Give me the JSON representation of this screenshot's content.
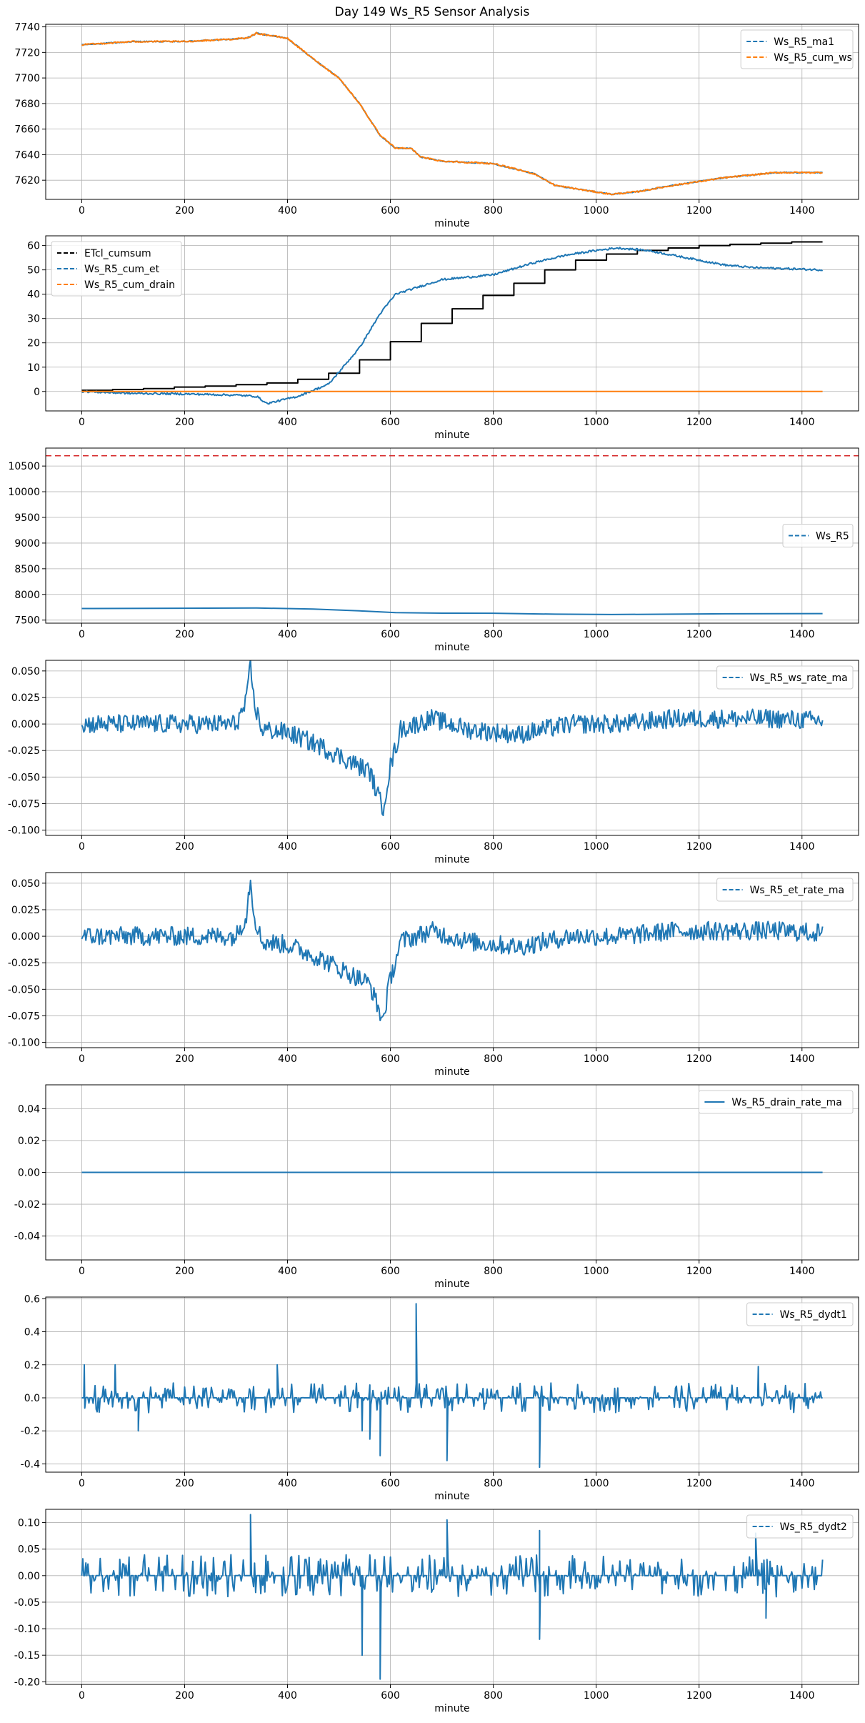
{
  "title": "Day 149 Ws_R5 Sensor Analysis",
  "colors": {
    "blue": "#1f77b4",
    "orange": "#ff7f0e",
    "black": "#000000",
    "red": "#d62728",
    "grid": "#b0b0b0"
  },
  "chart_data": [
    {
      "type": "line",
      "xlabel": "minute",
      "xlim": [
        -70,
        1510
      ],
      "ylim": [
        7605,
        7742
      ],
      "xticks": [
        0,
        200,
        400,
        600,
        800,
        1000,
        1200,
        1400
      ],
      "yticks": [
        7620,
        7640,
        7660,
        7680,
        7700,
        7720,
        7740
      ],
      "grid": true,
      "legend": "top-right",
      "series": [
        {
          "name": "Ws_R5_ma1",
          "color": "#1f77b4",
          "style": "dashed",
          "noise": 0.4,
          "points": [
            [
              0,
              7726
            ],
            [
              100,
              7728.5
            ],
            [
              200,
              7728.5
            ],
            [
              320,
              7731
            ],
            [
              340,
              7735
            ],
            [
              400,
              7731
            ],
            [
              450,
              7715
            ],
            [
              500,
              7700
            ],
            [
              540,
              7680
            ],
            [
              580,
              7655
            ],
            [
              610,
              7645
            ],
            [
              640,
              7645
            ],
            [
              660,
              7638
            ],
            [
              700,
              7635
            ],
            [
              800,
              7633
            ],
            [
              880,
              7625
            ],
            [
              920,
              7616
            ],
            [
              980,
              7612
            ],
            [
              1030,
              7609
            ],
            [
              1080,
              7611
            ],
            [
              1150,
              7616
            ],
            [
              1250,
              7622
            ],
            [
              1350,
              7626
            ],
            [
              1440,
              7626
            ]
          ]
        },
        {
          "name": "Ws_R5_cum_ws",
          "color": "#ff7f0e",
          "style": "dashed",
          "noise": 0.6,
          "points": [
            [
              0,
              7726
            ],
            [
              100,
              7728.5
            ],
            [
              200,
              7728.5
            ],
            [
              320,
              7731
            ],
            [
              340,
              7735
            ],
            [
              400,
              7731
            ],
            [
              450,
              7715
            ],
            [
              500,
              7700
            ],
            [
              540,
              7680
            ],
            [
              580,
              7655
            ],
            [
              610,
              7645
            ],
            [
              640,
              7645
            ],
            [
              660,
              7638
            ],
            [
              700,
              7635
            ],
            [
              800,
              7633
            ],
            [
              880,
              7625
            ],
            [
              920,
              7616
            ],
            [
              980,
              7612
            ],
            [
              1030,
              7609
            ],
            [
              1080,
              7611
            ],
            [
              1150,
              7616
            ],
            [
              1250,
              7622
            ],
            [
              1350,
              7626
            ],
            [
              1440,
              7626
            ]
          ]
        }
      ]
    },
    {
      "type": "line",
      "xlabel": "minute",
      "xlim": [
        -70,
        1510
      ],
      "ylim": [
        -8,
        64
      ],
      "xticks": [
        0,
        200,
        400,
        600,
        800,
        1000,
        1200,
        1400
      ],
      "yticks": [
        0,
        10,
        20,
        30,
        40,
        50,
        60
      ],
      "grid": true,
      "legend": "top-left",
      "series": [
        {
          "name": "ETcl_cumsum",
          "color": "#000000",
          "style": "dashed",
          "step": true,
          "points": [
            [
              0,
              0.5
            ],
            [
              60,
              0.8
            ],
            [
              120,
              1.2
            ],
            [
              180,
              1.8
            ],
            [
              240,
              2.2
            ],
            [
              300,
              2.8
            ],
            [
              360,
              3.5
            ],
            [
              420,
              5
            ],
            [
              480,
              7.5
            ],
            [
              540,
              13
            ],
            [
              600,
              20.5
            ],
            [
              660,
              28
            ],
            [
              720,
              34
            ],
            [
              780,
              39.5
            ],
            [
              840,
              44.5
            ],
            [
              900,
              50
            ],
            [
              960,
              54
            ],
            [
              1020,
              56.5
            ],
            [
              1080,
              58
            ],
            [
              1140,
              59
            ],
            [
              1200,
              60
            ],
            [
              1260,
              60.5
            ],
            [
              1320,
              61
            ],
            [
              1380,
              61.5
            ],
            [
              1440,
              61.5
            ]
          ]
        },
        {
          "name": "Ws_R5_cum_et",
          "color": "#1f77b4",
          "style": "dashed",
          "noise": 0.4,
          "points": [
            [
              0,
              0
            ],
            [
              100,
              -0.8
            ],
            [
              200,
              -1
            ],
            [
              300,
              -1.5
            ],
            [
              340,
              -2
            ],
            [
              360,
              -5
            ],
            [
              420,
              -2
            ],
            [
              480,
              3
            ],
            [
              540,
              18
            ],
            [
              580,
              32
            ],
            [
              610,
              40
            ],
            [
              640,
              42
            ],
            [
              700,
              46
            ],
            [
              800,
              48
            ],
            [
              880,
              53
            ],
            [
              940,
              56
            ],
            [
              1000,
              58
            ],
            [
              1040,
              59
            ],
            [
              1100,
              58
            ],
            [
              1150,
              56
            ],
            [
              1200,
              54
            ],
            [
              1250,
              52
            ],
            [
              1300,
              51
            ],
            [
              1440,
              50
            ]
          ]
        },
        {
          "name": "Ws_R5_cum_drain",
          "color": "#ff7f0e",
          "style": "dashed",
          "points": [
            [
              0,
              0
            ],
            [
              1440,
              0
            ]
          ]
        }
      ]
    },
    {
      "type": "line",
      "xlabel": "minute",
      "xlim": [
        -70,
        1510
      ],
      "ylim": [
        7440,
        10850
      ],
      "xticks": [
        0,
        200,
        400,
        600,
        800,
        1000,
        1200,
        1400
      ],
      "yticks": [
        7500,
        8000,
        8500,
        9000,
        9500,
        10000,
        10500
      ],
      "grid": true,
      "legend": "center-right",
      "hline": {
        "y": 10700,
        "color": "#d62728",
        "style": "dashed"
      },
      "series": [
        {
          "name": "Ws_R5",
          "color": "#1f77b4",
          "style": "dashed",
          "points": [
            [
              0,
              7726
            ],
            [
              340,
              7735
            ],
            [
              450,
              7715
            ],
            [
              540,
              7680
            ],
            [
              610,
              7645
            ],
            [
              700,
              7635
            ],
            [
              800,
              7633
            ],
            [
              920,
              7616
            ],
            [
              1030,
              7609
            ],
            [
              1250,
              7622
            ],
            [
              1440,
              7626
            ]
          ]
        }
      ]
    },
    {
      "type": "line",
      "xlabel": "minute",
      "xlim": [
        -70,
        1510
      ],
      "ylim": [
        -0.105,
        0.06
      ],
      "xticks": [
        0,
        200,
        400,
        600,
        800,
        1000,
        1200,
        1400
      ],
      "yticks": [
        -0.1,
        -0.075,
        -0.05,
        -0.025,
        0,
        0.025,
        0.05
      ],
      "ytick_labels": [
        "-0.100",
        "-0.075",
        "-0.050",
        "-0.025",
        "0.000",
        "0.025",
        "0.050"
      ],
      "grid": true,
      "legend": "top-right",
      "series": [
        {
          "name": "Ws_R5_ws_rate_ma",
          "color": "#1f77b4",
          "style": "dashed",
          "noise": 0.009,
          "points": [
            [
              0,
              0
            ],
            [
              300,
              0
            ],
            [
              320,
              0.02
            ],
            [
              328,
              0.055
            ],
            [
              335,
              0.02
            ],
            [
              350,
              -0.005
            ],
            [
              400,
              -0.008
            ],
            [
              460,
              -0.02
            ],
            [
              520,
              -0.035
            ],
            [
              560,
              -0.045
            ],
            [
              585,
              -0.08
            ],
            [
              600,
              -0.04
            ],
            [
              620,
              -0.005
            ],
            [
              680,
              0.005
            ],
            [
              750,
              -0.005
            ],
            [
              850,
              -0.01
            ],
            [
              950,
              0
            ],
            [
              1050,
              0
            ],
            [
              1150,
              0.005
            ],
            [
              1250,
              0.005
            ],
            [
              1350,
              0.005
            ],
            [
              1440,
              0.003
            ]
          ]
        }
      ]
    },
    {
      "type": "line",
      "xlabel": "minute",
      "xlim": [
        -70,
        1510
      ],
      "ylim": [
        -0.105,
        0.06
      ],
      "xticks": [
        0,
        200,
        400,
        600,
        800,
        1000,
        1200,
        1400
      ],
      "yticks": [
        -0.1,
        -0.075,
        -0.05,
        -0.025,
        0,
        0.025,
        0.05
      ],
      "ytick_labels": [
        "-0.100",
        "-0.075",
        "-0.050",
        "-0.025",
        "0.000",
        "0.025",
        "0.050"
      ],
      "grid": true,
      "legend": "top-right",
      "series": [
        {
          "name": "Ws_R5_et_rate_ma",
          "color": "#1f77b4",
          "style": "dashed",
          "noise": 0.009,
          "points": [
            [
              0,
              0
            ],
            [
              300,
              0
            ],
            [
              320,
              0.02
            ],
            [
              328,
              0.055
            ],
            [
              335,
              0.02
            ],
            [
              350,
              -0.005
            ],
            [
              400,
              -0.008
            ],
            [
              460,
              -0.02
            ],
            [
              520,
              -0.035
            ],
            [
              560,
              -0.045
            ],
            [
              585,
              -0.08
            ],
            [
              600,
              -0.04
            ],
            [
              620,
              -0.005
            ],
            [
              680,
              0.005
            ],
            [
              750,
              -0.005
            ],
            [
              850,
              -0.01
            ],
            [
              950,
              0
            ],
            [
              1050,
              0
            ],
            [
              1150,
              0.005
            ],
            [
              1250,
              0.005
            ],
            [
              1350,
              0.005
            ],
            [
              1440,
              0.003
            ]
          ]
        }
      ]
    },
    {
      "type": "line",
      "xlabel": "minute",
      "xlim": [
        -70,
        1510
      ],
      "ylim": [
        -0.055,
        0.055
      ],
      "xticks": [
        0,
        200,
        400,
        600,
        800,
        1000,
        1200,
        1400
      ],
      "yticks": [
        -0.04,
        -0.02,
        0,
        0.02,
        0.04
      ],
      "ytick_labels": [
        "-0.04",
        "-0.02",
        "0.00",
        "0.02",
        "0.04"
      ],
      "grid": true,
      "legend": "top-right",
      "series": [
        {
          "name": "Ws_R5_drain_rate_ma",
          "color": "#1f77b4",
          "style": "solid",
          "points": [
            [
              0,
              0
            ],
            [
              1440,
              0
            ]
          ]
        }
      ]
    },
    {
      "type": "line",
      "xlabel": "minute",
      "xlim": [
        -70,
        1510
      ],
      "ylim": [
        -0.45,
        0.61
      ],
      "xticks": [
        0,
        200,
        400,
        600,
        800,
        1000,
        1200,
        1400
      ],
      "yticks": [
        -0.4,
        -0.2,
        0,
        0.2,
        0.4,
        0.6
      ],
      "ytick_labels": [
        "-0.4",
        "-0.2",
        "0.0",
        "0.2",
        "0.4",
        "0.6"
      ],
      "grid": true,
      "legend": "top-right",
      "series": [
        {
          "name": "Ws_R5_dydt1",
          "color": "#1f77b4",
          "style": "dashed",
          "spiky": true,
          "amp": 0.09,
          "points": [
            [
              0,
              0
            ],
            [
              1440,
              0
            ]
          ],
          "spikes": [
            [
              5,
              0.2
            ],
            [
              65,
              0.2
            ],
            [
              110,
              -0.2
            ],
            [
              380,
              0.2
            ],
            [
              545,
              -0.2
            ],
            [
              560,
              -0.25
            ],
            [
              580,
              -0.35
            ],
            [
              650,
              0.57
            ],
            [
              710,
              -0.38
            ],
            [
              890,
              -0.42
            ],
            [
              1315,
              0.19
            ]
          ]
        }
      ]
    },
    {
      "type": "line",
      "xlabel": "minute",
      "xlim": [
        -70,
        1510
      ],
      "ylim": [
        -0.205,
        0.125
      ],
      "xticks": [
        0,
        200,
        400,
        600,
        800,
        1000,
        1200,
        1400
      ],
      "yticks": [
        -0.2,
        -0.15,
        -0.1,
        -0.05,
        0,
        0.05,
        0.1
      ],
      "ytick_labels": [
        "-0.20",
        "-0.15",
        "-0.10",
        "-0.05",
        "0.00",
        "0.05",
        "0.10"
      ],
      "grid": true,
      "legend": "top-right",
      "series": [
        {
          "name": "Ws_R5_dydt2",
          "color": "#1f77b4",
          "style": "dashed",
          "spiky": true,
          "amp": 0.04,
          "points": [
            [
              0,
              0
            ],
            [
              1440,
              0
            ]
          ],
          "spikes": [
            [
              328,
              0.115
            ],
            [
              545,
              -0.15
            ],
            [
              580,
              -0.195
            ],
            [
              710,
              0.105
            ],
            [
              890,
              0.085
            ],
            [
              890,
              -0.12
            ],
            [
              1310,
              0.08
            ],
            [
              1330,
              -0.08
            ]
          ]
        }
      ]
    }
  ]
}
